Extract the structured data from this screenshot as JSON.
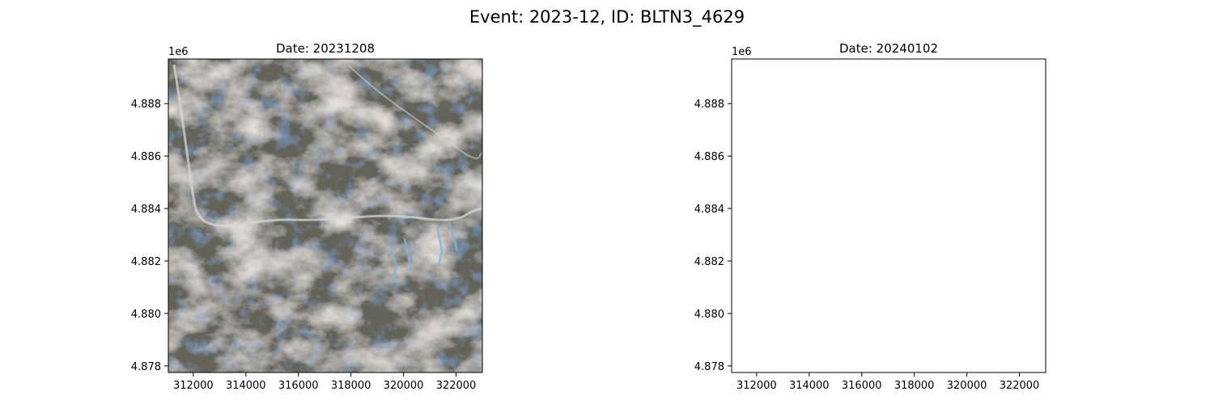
{
  "figure": {
    "suptitle": "Event: 2023-12, ID: BLTN3_4629"
  },
  "panels": [
    {
      "title": "Date: 20231208",
      "offset_label": "1e6",
      "image_present": true,
      "x_ticks": [
        "312000",
        "314000",
        "316000",
        "318000",
        "320000",
        "322000"
      ],
      "y_ticks": [
        "4.888",
        "4.886",
        "4.884",
        "4.882",
        "4.880",
        "4.878"
      ]
    },
    {
      "title": "Date: 20240102",
      "offset_label": "1e6",
      "image_present": false,
      "x_ticks": [
        "312000",
        "314000",
        "316000",
        "318000",
        "320000",
        "322000"
      ],
      "y_ticks": [
        "4.888",
        "4.886",
        "4.884",
        "4.882",
        "4.880",
        "4.878"
      ]
    }
  ],
  "chart_data": [
    {
      "type": "heatmap",
      "title": "Date: 20231208",
      "content": "satellite true-color image",
      "xlim": [
        311050,
        323000
      ],
      "ylim": [
        4877750,
        4889700
      ],
      "x_ticks": [
        312000,
        314000,
        316000,
        318000,
        320000,
        322000
      ],
      "y_ticks": [
        4888000,
        4886000,
        4884000,
        4882000,
        4880000,
        4878000
      ],
      "y_offset_text": "1e6",
      "grid": false,
      "colors": {
        "snow": "#e8e2dc",
        "forest": "#3b3d33",
        "shadow": "#2a4060",
        "rock": "#9a8e86"
      }
    },
    {
      "type": "heatmap",
      "title": "Date: 20240102",
      "content": "empty",
      "xlim": [
        311050,
        323000
      ],
      "ylim": [
        4877750,
        4889700
      ],
      "x_ticks": [
        312000,
        314000,
        316000,
        318000,
        320000,
        322000
      ],
      "y_ticks": [
        4888000,
        4886000,
        4884000,
        4882000,
        4880000,
        4878000
      ],
      "y_offset_text": "1e6",
      "grid": false
    }
  ]
}
